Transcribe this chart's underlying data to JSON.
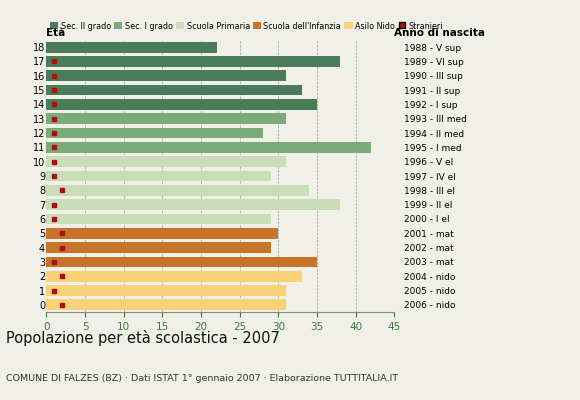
{
  "ages": [
    18,
    17,
    16,
    15,
    14,
    13,
    12,
    11,
    10,
    9,
    8,
    7,
    6,
    5,
    4,
    3,
    2,
    1,
    0
  ],
  "years": [
    "1988 - V sup",
    "1989 - VI sup",
    "1990 - III sup",
    "1991 - II sup",
    "1992 - I sup",
    "1993 - III med",
    "1994 - II med",
    "1995 - I med",
    "1996 - V el",
    "1997 - IV el",
    "1998 - III el",
    "1999 - II el",
    "2000 - I el",
    "2001 - mat",
    "2002 - mat",
    "2003 - mat",
    "2004 - nido",
    "2005 - nido",
    "2006 - nido"
  ],
  "values": [
    22,
    38,
    31,
    33,
    35,
    31,
    28,
    42,
    31,
    29,
    34,
    38,
    29,
    30,
    29,
    35,
    33,
    31,
    31
  ],
  "stranieri": [
    0,
    1,
    1,
    1,
    1,
    1,
    1,
    1,
    1,
    1,
    2,
    1,
    1,
    2,
    2,
    1,
    2,
    1,
    2
  ],
  "colors_by_age": {
    "18": "#4a7c59",
    "17": "#4a7c59",
    "16": "#4a7c59",
    "15": "#4a7c59",
    "14": "#4a7c59",
    "13": "#7aab78",
    "12": "#7aab78",
    "11": "#7aab78",
    "10": "#c8ddb8",
    "9": "#c8ddb8",
    "8": "#c8ddb8",
    "7": "#c8ddb8",
    "6": "#c8ddb8",
    "5": "#c8732a",
    "4": "#c8732a",
    "3": "#c8732a",
    "2": "#f9d278",
    "1": "#f9d278",
    "0": "#f9d278"
  },
  "legend_labels": [
    "Sec. II grado",
    "Sec. I grado",
    "Scuola Primaria",
    "Scuola dell'Infanzia",
    "Asilo Nido",
    "Stranieri"
  ],
  "legend_colors": [
    "#4a7c59",
    "#7aab78",
    "#c8ddb8",
    "#c8732a",
    "#f9d278",
    "#aa1111"
  ],
  "stranieri_color": "#aa1111",
  "title": "Popolazione per età scolastica - 2007",
  "subtitle": "COMUNE DI FALZES (BZ) · Dati ISTAT 1° gennaio 2007 · Elaborazione TUTTITALIA.IT",
  "xlabel_eta": "Età",
  "xlabel_anno": "Anno di nascita",
  "xlim": [
    0,
    45
  ],
  "xticks": [
    0,
    5,
    10,
    15,
    20,
    25,
    30,
    35,
    40,
    45
  ],
  "bar_height": 0.75,
  "background_color": "#f0f0e8",
  "grid_color": "#999999"
}
